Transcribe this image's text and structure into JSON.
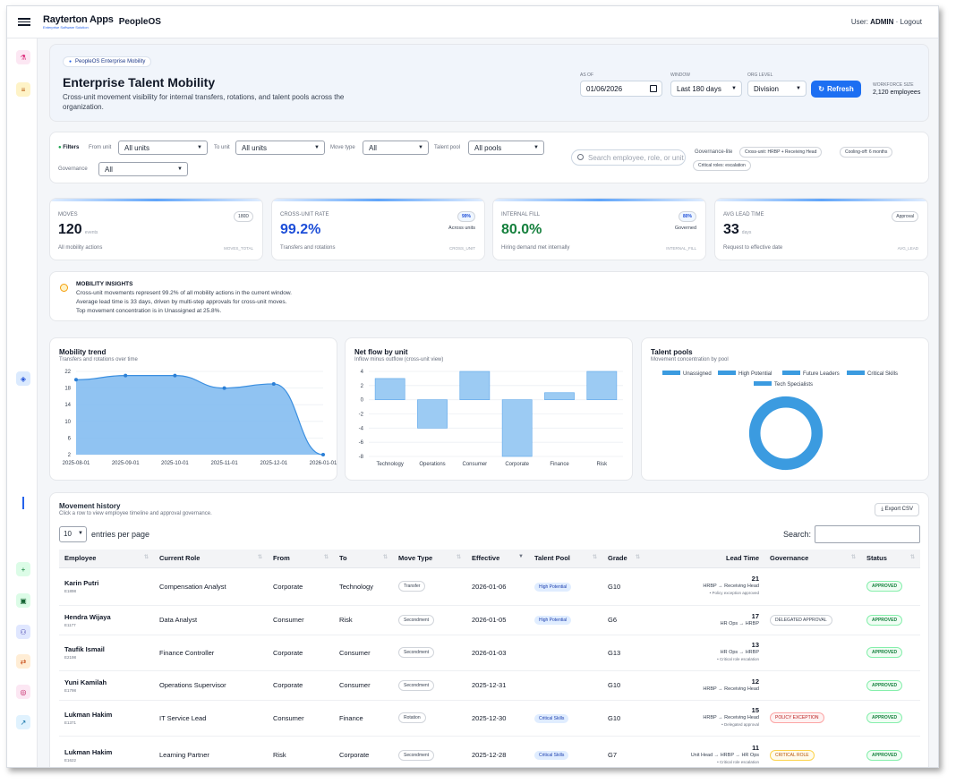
{
  "topbar": {
    "brand": "Rayterton Apps",
    "brand_sub": "Enterprise Software Solution",
    "app": "PeopleOS",
    "user_label": "User:",
    "user": "ADMIN",
    "sep": "·",
    "logout": "Logout"
  },
  "hero": {
    "pill": "PeopleOS Enterprise Mobility",
    "title": "Enterprise Talent Mobility",
    "subtitle": "Cross-unit movement visibility for internal transfers, rotations, and talent pools across the organization.",
    "as_of_label": "AS OF",
    "as_of": "01/06/2026",
    "window_label": "WINDOW",
    "window": "Last 180 days",
    "org_label": "ORG LEVEL",
    "org": "Division",
    "refresh": "Refresh",
    "workforce_label": "WORKFORCE SIZE",
    "workforce": "2,120 employees"
  },
  "filters": {
    "title": "Filters",
    "from_label": "From unit",
    "from": "All units",
    "to_label": "To unit",
    "to": "All units",
    "move_label": "Move type",
    "move": "All",
    "pool_label": "Talent pool",
    "pool": "All pools",
    "gov_label": "Governance",
    "gov": "All",
    "search_placeholder": "Search employee, role, or unit",
    "gov_lite": "Governance-lite",
    "chips": [
      "Cross-unit: HRBP + Receiving Head",
      "Cooling-off: 6 months",
      "Critical roles: escalation"
    ]
  },
  "kpis": [
    {
      "label": "MOVES",
      "value": "120",
      "unit": "events",
      "sub": "All mobility actions",
      "code": "MOVES_TOTAL",
      "badge": "180D",
      "color": "#111827"
    },
    {
      "label": "CROSS-UNIT RATE",
      "value": "99.2%",
      "unit": "",
      "sub": "Transfers and rotations",
      "code": "CROSS_UNIT",
      "badge": "99%",
      "badge2": "Across units",
      "color": "#1d4ed8"
    },
    {
      "label": "INTERNAL FILL",
      "value": "80.0%",
      "unit": "",
      "sub": "Hiring demand met internally",
      "code": "INTERNAL_FILL",
      "badge": "80%",
      "badge2": "Governed",
      "color": "#15803d"
    },
    {
      "label": "AVG LEAD TIME",
      "value": "33",
      "unit": "days",
      "sub": "Request to effective date",
      "code": "AVG_LEAD",
      "badge": "Approval",
      "color": "#111827"
    }
  ],
  "insights": {
    "title": "MOBILITY INSIGHTS",
    "lines": [
      "Cross-unit movements represent 99.2% of all mobility actions in the current window.",
      "Average lead time is 33 days, driven by multi-step approvals for cross-unit moves.",
      "Top movement concentration is in Unassigned at 25.8%."
    ]
  },
  "charts": {
    "trend": {
      "title": "Mobility trend",
      "subtitle": "Transfers and rotations over time"
    },
    "netflow": {
      "title": "Net flow by unit",
      "subtitle": "Inflow minus outflow (cross-unit view)"
    },
    "pools": {
      "title": "Talent pools",
      "subtitle": "Movement concentration by pool"
    }
  },
  "chart_data": [
    {
      "type": "area",
      "title": "Mobility trend",
      "x": [
        "2025-08-01",
        "2025-09-01",
        "2025-10-01",
        "2025-11-01",
        "2025-12-01",
        "2026-01-01"
      ],
      "values": [
        20,
        21,
        21,
        18,
        19,
        2
      ],
      "yticks": [
        22,
        18,
        14,
        10,
        6,
        2
      ],
      "ylim": [
        2,
        22
      ],
      "grid": true,
      "color": "#60a5fa"
    },
    {
      "type": "bar",
      "title": "Net flow by unit",
      "categories": [
        "Technology",
        "Operations",
        "Consumer",
        "Corporate",
        "Finance",
        "Risk"
      ],
      "values": [
        3,
        -4,
        4,
        -8,
        1,
        4
      ],
      "yticks": [
        4,
        2,
        0,
        -2,
        -4,
        -6,
        -8
      ],
      "ylim": [
        -8,
        4
      ],
      "grid": true,
      "color": "#93c5fd"
    },
    {
      "type": "pie",
      "title": "Talent pools",
      "donut": true,
      "legend": [
        "Unassigned",
        "High Potential",
        "Future Leaders",
        "Critical Skills",
        "Tech Specialists"
      ],
      "legend_placement": "top",
      "color": "#3b9be0"
    }
  ],
  "history": {
    "title": "Movement history",
    "subtitle": "Click a row to view employee timeline and approval governance.",
    "export": "Export CSV",
    "entries_value": "10",
    "entries_label": "entries per page",
    "search_label": "Search:",
    "columns": [
      "Employee",
      "Current Role",
      "From",
      "To",
      "Move Type",
      "Effective",
      "Talent Pool",
      "Grade",
      "Lead Time",
      "Governance",
      "Status"
    ],
    "rows": [
      {
        "name": "Karin Putri",
        "id": "E1898",
        "role": "Compensation Analyst",
        "from": "Corporate",
        "to": "Technology",
        "move": "Transfer",
        "eff": "2026-01-06",
        "pool": "High Potential",
        "grade": "G10",
        "lead": "21",
        "route": "HRBP → Receiving Head",
        "note": "• Policy exception approved",
        "gov": "",
        "gov_type": "",
        "status": "APPROVED"
      },
      {
        "name": "Hendra Wijaya",
        "id": "E1177",
        "role": "Data Analyst",
        "from": "Consumer",
        "to": "Risk",
        "move": "Secondment",
        "eff": "2026-01-05",
        "pool": "High Potential",
        "grade": "G6",
        "lead": "17",
        "route": "HR Ops → HRBP",
        "note": "",
        "gov": "DELEGATED APPROVAL",
        "gov_type": "deleg",
        "status": "APPROVED"
      },
      {
        "name": "Taufik Ismail",
        "id": "E2198",
        "role": "Finance Controller",
        "from": "Corporate",
        "to": "Consumer",
        "move": "Secondment",
        "eff": "2026-01-03",
        "pool": "",
        "grade": "G13",
        "lead": "13",
        "route": "HR Ops → HRBP",
        "note": "• Critical role escalation",
        "gov": "",
        "gov_type": "",
        "status": "APPROVED"
      },
      {
        "name": "Yuni Kamilah",
        "id": "E1798",
        "role": "Operations Supervisor",
        "from": "Corporate",
        "to": "Consumer",
        "move": "Secondment",
        "eff": "2025-12-31",
        "pool": "",
        "grade": "G10",
        "lead": "12",
        "route": "HRBP → Receiving Head",
        "note": "",
        "gov": "",
        "gov_type": "",
        "status": "APPROVED"
      },
      {
        "name": "Lukman Hakim",
        "id": "E1371",
        "role": "IT Service Lead",
        "from": "Consumer",
        "to": "Finance",
        "move": "Rotation",
        "eff": "2025-12-30",
        "pool": "Critical Skills",
        "grade": "G10",
        "lead": "15",
        "route": "HRBP → Receiving Head",
        "note": "• Delegated approval",
        "gov": "POLICY EXCEPTION",
        "gov_type": "pol",
        "status": "APPROVED"
      },
      {
        "name": "Lukman Hakim",
        "id": "E1622",
        "role": "Learning Partner",
        "from": "Risk",
        "to": "Corporate",
        "move": "Secondment",
        "eff": "2025-12-28",
        "pool": "Critical Skills",
        "grade": "G7",
        "lead": "11",
        "route": "Unit Head → HRBP → HR Ops",
        "note": "• Critical role escalation",
        "gov": "CRITICAL ROLE",
        "gov_type": "crit",
        "status": "APPROVED"
      }
    ]
  },
  "sidebar": {
    "icons": [
      "flask-icon",
      "database-icon",
      "layers-icon",
      "user-add-icon",
      "badge-icon",
      "users-icon",
      "share-icon",
      "target-icon",
      "chart-icon"
    ],
    "colors": {
      "accent": "#2563eb",
      "brand": "#1d6ff2"
    }
  }
}
